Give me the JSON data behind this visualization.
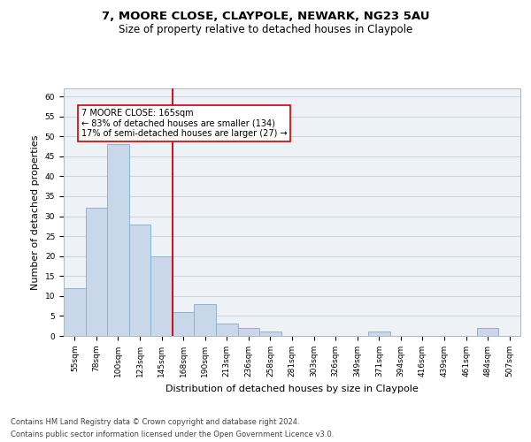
{
  "title_line1": "7, MOORE CLOSE, CLAYPOLE, NEWARK, NG23 5AU",
  "title_line2": "Size of property relative to detached houses in Claypole",
  "xlabel": "Distribution of detached houses by size in Claypole",
  "ylabel": "Number of detached properties",
  "bin_labels": [
    "55sqm",
    "78sqm",
    "100sqm",
    "123sqm",
    "145sqm",
    "168sqm",
    "190sqm",
    "213sqm",
    "236sqm",
    "258sqm",
    "281sqm",
    "303sqm",
    "326sqm",
    "349sqm",
    "371sqm",
    "394sqm",
    "416sqm",
    "439sqm",
    "461sqm",
    "484sqm",
    "507sqm"
  ],
  "bar_heights": [
    12,
    32,
    48,
    28,
    20,
    6,
    8,
    3,
    2,
    1,
    0,
    0,
    0,
    0,
    1,
    0,
    0,
    0,
    0,
    2,
    0
  ],
  "bar_color": "#c8d8ea",
  "bar_edge_color": "#8ab4d4",
  "bar_edge_width": 0.7,
  "vline_bin_index": 5,
  "property_label": "7 MOORE CLOSE: 165sqm",
  "annotation_line2": "← 83% of detached houses are smaller (134)",
  "annotation_line3": "17% of semi-detached houses are larger (27) →",
  "vline_color": "#cc0000",
  "annotation_box_edge_color": "#cc0000",
  "ylim": [
    0,
    62
  ],
  "yticks": [
    0,
    5,
    10,
    15,
    20,
    25,
    30,
    35,
    40,
    45,
    50,
    55,
    60
  ],
  "grid_color": "#c8d4de",
  "bg_color": "#eef2f6",
  "footer_line1": "Contains HM Land Registry data © Crown copyright and database right 2024.",
  "footer_line2": "Contains public sector information licensed under the Open Government Licence v3.0.",
  "title_fontsize": 9.5,
  "subtitle_fontsize": 8.5,
  "axis_label_fontsize": 8,
  "tick_fontsize": 6.5,
  "annotation_fontsize": 7,
  "footer_fontsize": 6
}
